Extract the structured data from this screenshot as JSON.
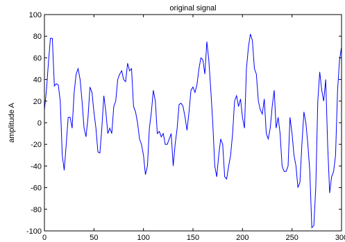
{
  "chart_data": {
    "type": "line",
    "title": "original signal",
    "xlabel": "",
    "ylabel": "amplitude  A",
    "xlim": [
      0,
      300
    ],
    "ylim": [
      -100,
      100
    ],
    "xticks": [
      "0",
      "50",
      "100",
      "150",
      "200",
      "250",
      "300"
    ],
    "yticks": [
      "100",
      "80",
      "60",
      "40",
      "20",
      "0",
      "-20",
      "-40",
      "-60",
      "-80",
      "-100"
    ],
    "grid": false,
    "legend": "none",
    "line_color": "#0000ff",
    "series": [
      {
        "x": [
          0,
          2,
          4,
          6,
          8,
          10,
          12,
          14,
          16,
          18,
          20,
          22,
          24,
          26,
          28,
          30,
          32,
          34,
          36,
          38,
          40,
          42,
          44,
          46,
          48,
          50,
          52,
          54,
          56,
          58,
          60,
          62,
          64,
          66,
          68,
          70,
          72,
          74,
          76,
          78,
          80,
          82,
          84,
          86,
          88,
          90,
          92,
          94,
          96,
          98,
          100,
          102,
          104,
          106,
          108,
          110,
          112,
          114,
          116,
          118,
          120,
          122,
          124,
          126,
          128,
          130,
          132,
          134,
          136,
          138,
          140,
          142,
          144,
          146,
          148,
          150,
          152,
          154,
          156,
          158,
          160,
          162,
          164,
          166,
          168,
          170,
          172,
          174,
          176,
          178,
          180,
          182,
          184,
          186,
          188,
          190,
          192,
          194,
          196,
          198,
          200,
          202,
          204,
          206,
          208,
          210,
          212,
          214,
          216,
          218,
          220,
          222,
          224,
          226,
          228,
          230,
          232,
          234,
          236,
          238,
          240,
          242,
          244,
          246,
          248,
          250,
          252,
          254,
          256,
          258,
          260,
          262,
          264,
          266,
          268,
          270,
          272,
          274,
          276,
          278,
          280,
          282,
          284,
          286,
          288,
          290,
          292,
          294,
          296,
          298,
          300
        ],
        "y": [
          12,
          30,
          55,
          78,
          78,
          34,
          36,
          35,
          20,
          -30,
          -44,
          -20,
          5,
          5,
          -5,
          28,
          45,
          50,
          40,
          20,
          -5,
          -13,
          5,
          33,
          28,
          10,
          -5,
          -27,
          -28,
          -5,
          25,
          10,
          -10,
          -5,
          -10,
          15,
          20,
          40,
          45,
          48,
          40,
          38,
          55,
          48,
          50,
          15,
          10,
          0,
          -15,
          -20,
          -30,
          -48,
          -40,
          -5,
          10,
          30,
          20,
          -10,
          -8,
          -13,
          -10,
          -20,
          -20,
          -15,
          -10,
          -40,
          -20,
          -5,
          17,
          18,
          15,
          5,
          -7,
          10,
          30,
          33,
          28,
          35,
          50,
          60,
          58,
          45,
          75,
          58,
          30,
          0,
          -40,
          -50,
          -30,
          -15,
          -20,
          -50,
          -52,
          -40,
          -30,
          -10,
          20,
          25,
          15,
          22,
          5,
          -5,
          50,
          70,
          82,
          76,
          50,
          45,
          20,
          12,
          8,
          22,
          -10,
          -15,
          -5,
          15,
          30,
          -5,
          5,
          -10,
          -40,
          -45,
          -45,
          -40,
          5,
          -10,
          -30,
          -40,
          -60,
          -55,
          -20,
          10,
          0,
          -20,
          -45,
          -97,
          -95,
          -60,
          20,
          47,
          30,
          20,
          40,
          -20,
          -65,
          -50,
          -45,
          -30,
          30,
          58,
          70
        ]
      }
    ]
  }
}
